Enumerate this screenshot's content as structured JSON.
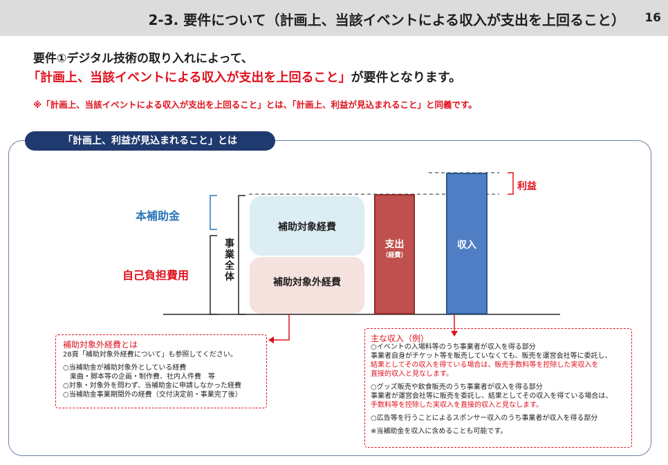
{
  "header": {
    "title": "2-3. 要件について（計画上、当該イベントによる収入が支出を上回ること）",
    "page_number": "16"
  },
  "intro": {
    "line1": "要件①デジタル技術の取り入れによって、",
    "line2_red": "「計画上、当該イベントによる収入が支出を上回ること」",
    "line2_rest": "が要件となります。",
    "note": "※「計画上、当該イベントによる収入が支出を上回ること」とは、「計画上、利益が見込まれること」と同義です。"
  },
  "panel": {
    "tab_label": "「計画上、利益が見込まれること」とは"
  },
  "diagram": {
    "block_subsidized": "補助対象経費",
    "block_unsubsidized": "補助対象外経費",
    "bar_expense_label": "支出",
    "bar_expense_sub": "（経費）",
    "bar_income_label": "収入",
    "legend_subsidy": "本補助金",
    "legend_self_burden": "自己負担費用",
    "project_total": "事業全体",
    "profit": "利益"
  },
  "box_left": {
    "title": "補助対象外経費とは",
    "lines": [
      "28頁「補助対象外経費について」も参照してください。",
      "",
      "○当補助金が補助対象外としている経費",
      "　楽曲・脚本等の企画・制作費、社内人件費　等",
      "○対象・対象外を問わず、当補助金に申請しなかった経費",
      "○当補助金事業期間外の経費（交付決定前・事業完了後）"
    ]
  },
  "box_right": {
    "title": "主な収入（例）",
    "items": [
      {
        "text": "○イベントの入場料等のうち事業者が収入を得る部分",
        "red": false
      },
      {
        "text": "事業者自身がチケット等を販売していなくても、販売を運営会社等に委託し、",
        "red": false
      },
      {
        "text": "結果としてその収入を得ている場合は、販売手数料等を控除した実収入を",
        "red": true
      },
      {
        "text": "直接的収入と見なします。",
        "red": true
      },
      {
        "text": "",
        "red": false
      },
      {
        "text": "○グッズ販売や飲食販売のうち事業者が収入を得る部分",
        "red": false
      },
      {
        "text": "事業者が運営会社等に販売を委託し、結果としてその収入を得ている場合は、",
        "red": false
      },
      {
        "text": "手数料等を控除した実収入を直接的収入と見なします。",
        "red": true
      },
      {
        "text": "",
        "red": false
      },
      {
        "text": "○広告等を行うことによるスポンサー収入のうち事業者が収入を得る部分",
        "red": false
      },
      {
        "text": "",
        "red": false
      },
      {
        "text": "※当補助金を収入に含めることも可能です。",
        "red": false
      }
    ]
  },
  "colors": {
    "accent_red": "#e0101c",
    "navy": "#1e3a6e",
    "subsidy_blue": "#2a75b8",
    "expense_bar": "#c0504d",
    "income_bar": "#4f7ec4"
  }
}
